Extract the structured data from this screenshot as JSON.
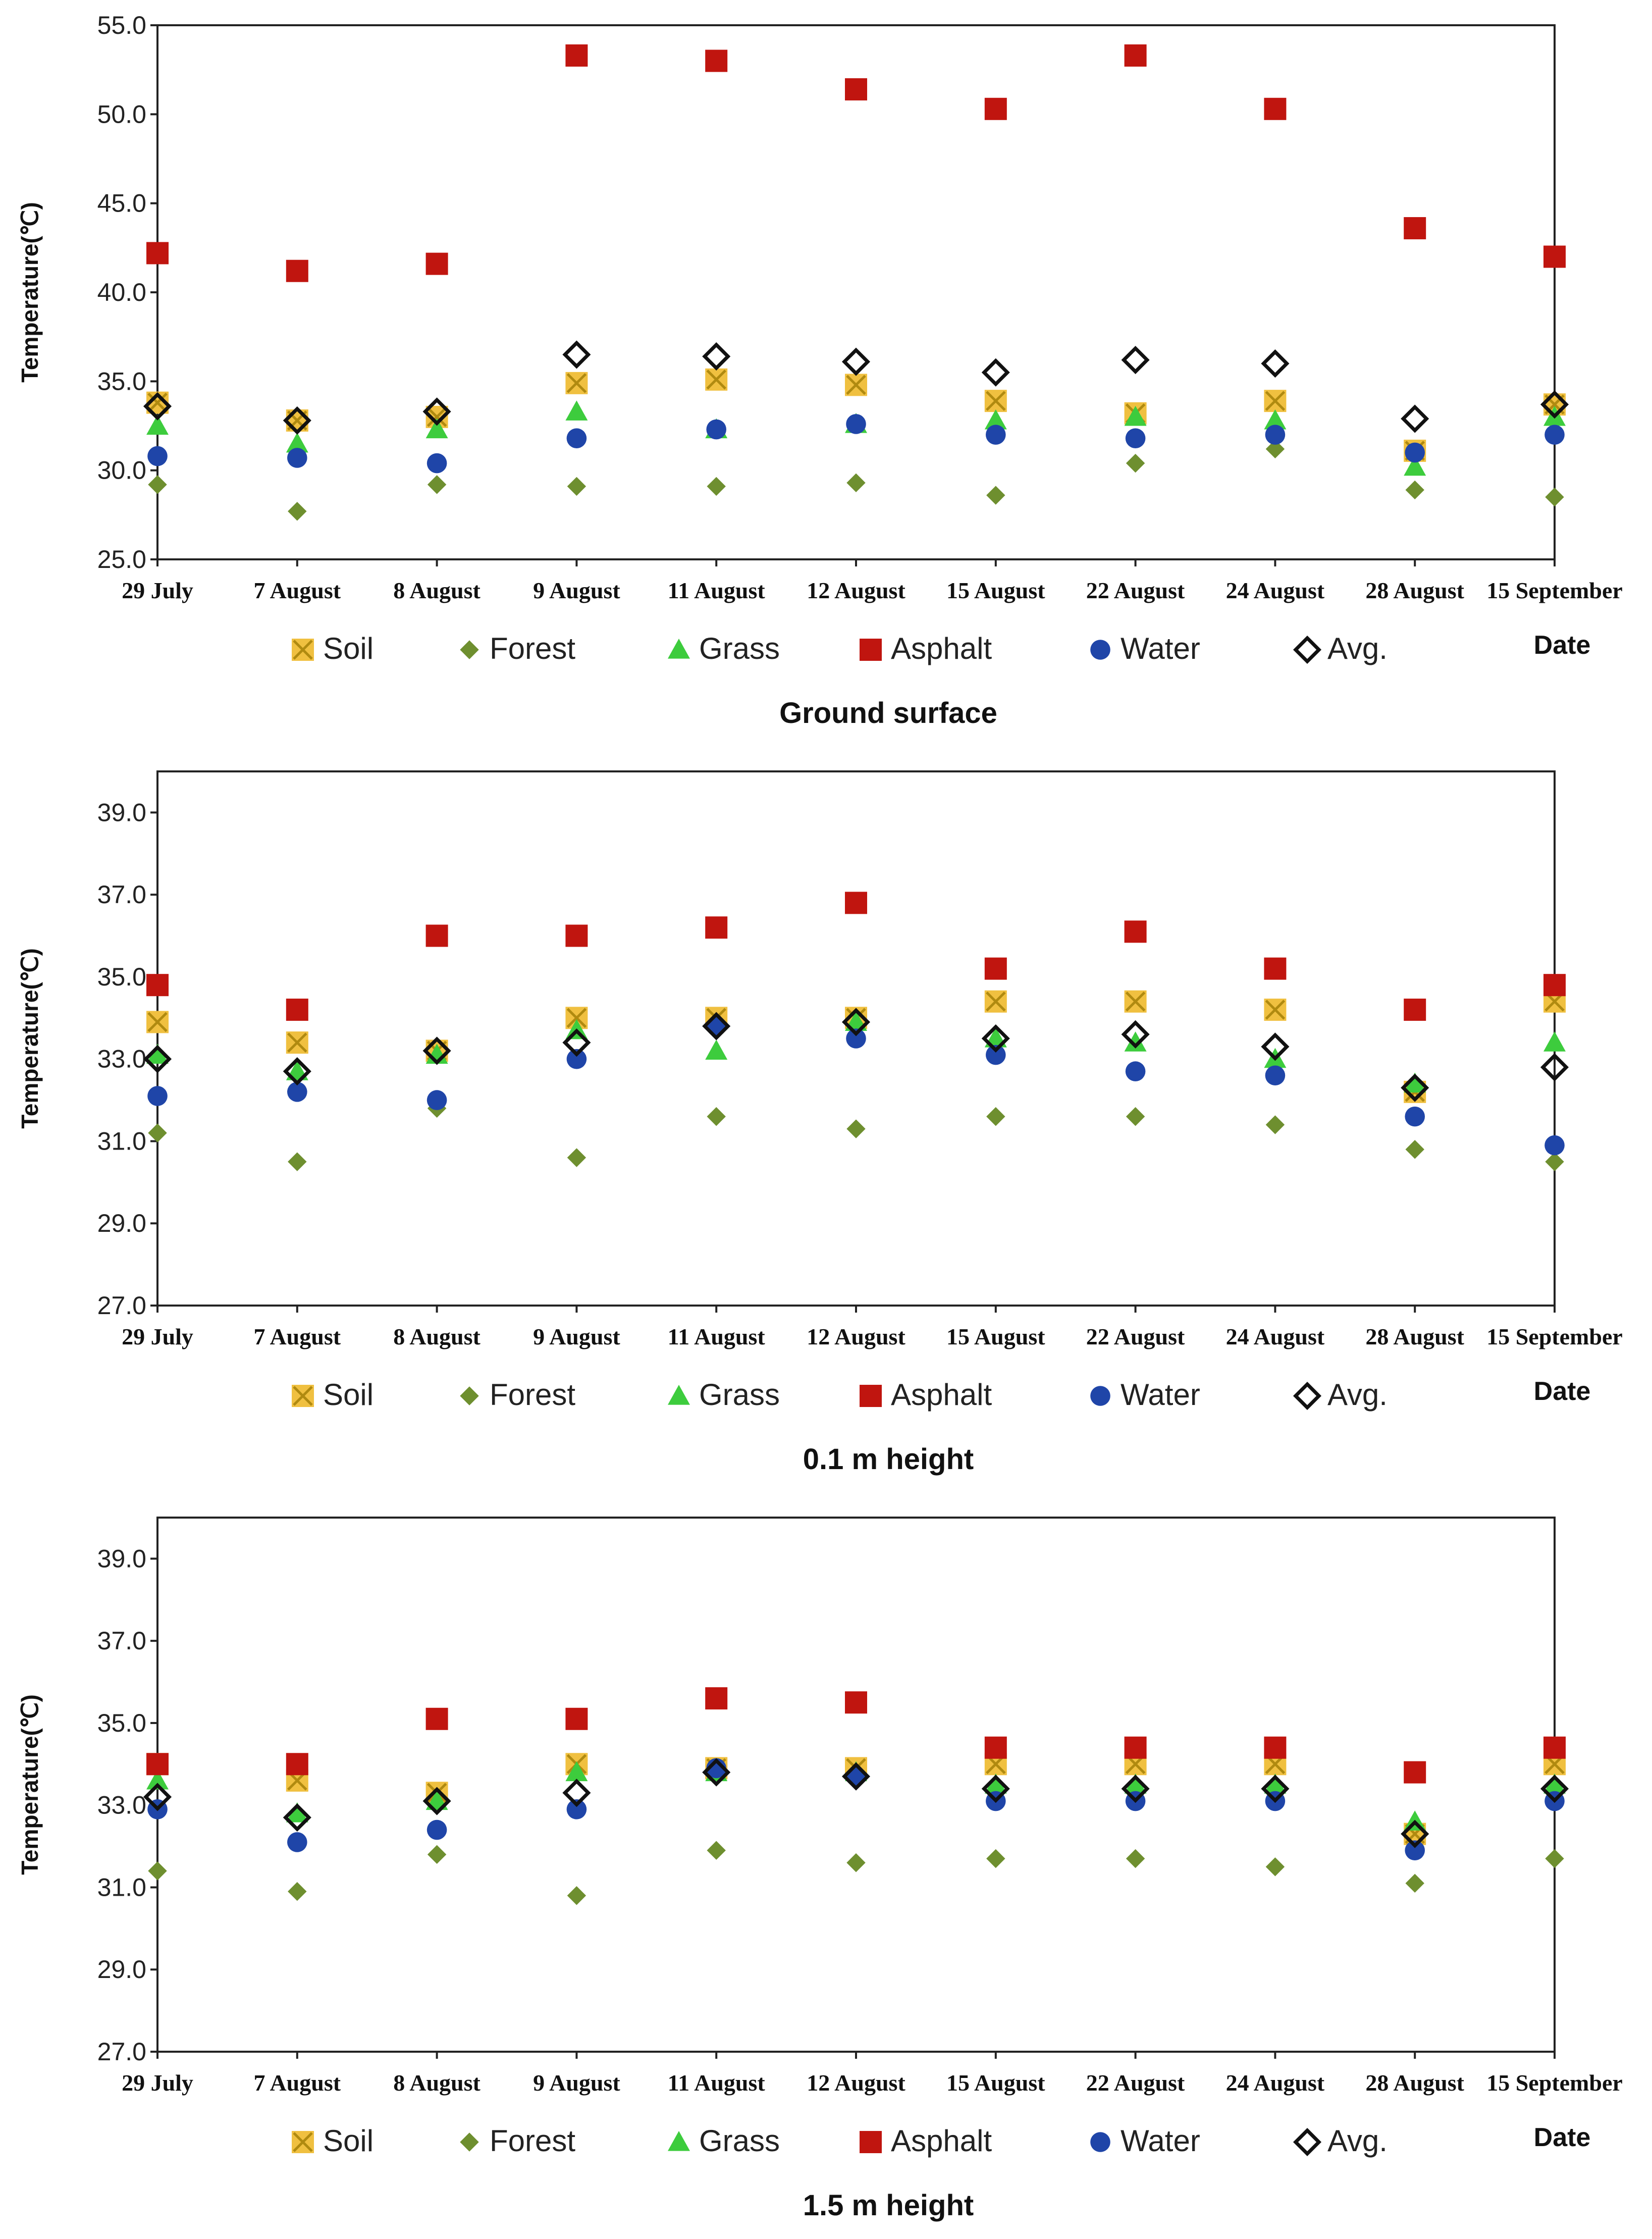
{
  "chart_data": [
    {
      "type": "scatter",
      "title": "Ground surface",
      "xlabel": "Date",
      "ylabel": "Temperature(℃)",
      "ylim": [
        25.0,
        55.0
      ],
      "yticks": [
        "25.0",
        "30.0",
        "35.0",
        "40.0",
        "45.0",
        "50.0",
        "55.0"
      ],
      "categories": [
        "29 July",
        "7 August",
        "8 August",
        "9 August",
        "11 August",
        "12 August",
        "15 August",
        "22 August",
        "24 August",
        "28 August",
        "15 September"
      ],
      "legend_position": "bottom",
      "series": [
        {
          "name": "Soil",
          "marker": "x-square",
          "color": "#f0c040",
          "values": [
            33.8,
            32.8,
            33.0,
            34.9,
            35.1,
            34.8,
            33.9,
            33.2,
            33.9,
            31.1,
            33.7
          ]
        },
        {
          "name": "Forest",
          "marker": "diamond",
          "color": "#6e8f2f",
          "values": [
            29.2,
            27.7,
            29.2,
            29.1,
            29.1,
            29.3,
            28.6,
            30.4,
            31.2,
            28.9,
            28.5
          ]
        },
        {
          "name": "Grass",
          "marker": "triangle",
          "color": "#3dcc3d",
          "values": [
            32.5,
            31.5,
            32.3,
            33.3,
            32.3,
            32.6,
            32.8,
            33.0,
            32.8,
            30.2,
            33.0
          ]
        },
        {
          "name": "Asphalt",
          "marker": "square",
          "color": "#c0150f",
          "values": [
            42.2,
            41.2,
            41.6,
            53.3,
            53.0,
            51.4,
            50.3,
            53.3,
            50.3,
            43.6,
            42.0
          ]
        },
        {
          "name": "Water",
          "marker": "circle",
          "color": "#1f45a8",
          "values": [
            30.8,
            30.7,
            30.4,
            31.8,
            32.3,
            32.6,
            32.0,
            31.8,
            32.0,
            31.0,
            32.0
          ]
        },
        {
          "name": "Avg.",
          "marker": "diamond-open",
          "color": "#111111",
          "values": [
            33.6,
            32.8,
            33.3,
            36.5,
            36.4,
            36.1,
            35.5,
            36.2,
            36.0,
            32.9,
            33.7
          ]
        }
      ]
    },
    {
      "type": "scatter",
      "title": "0.1 m height",
      "xlabel": "Date",
      "ylabel": "Temperature(℃)",
      "ylim": [
        27.0,
        40.0
      ],
      "yticks": [
        "27.0",
        "29.0",
        "31.0",
        "33.0",
        "35.0",
        "37.0",
        "39.0"
      ],
      "categories": [
        "29 July",
        "7 August",
        "8 August",
        "9 August",
        "11 August",
        "12 August",
        "15 August",
        "22 August",
        "24 August",
        "28 August",
        "15 September"
      ],
      "legend_position": "bottom",
      "series": [
        {
          "name": "Soil",
          "marker": "x-square",
          "color": "#f0c040",
          "values": [
            33.9,
            33.4,
            33.2,
            34.0,
            34.0,
            34.0,
            34.4,
            34.4,
            34.2,
            32.2,
            34.4
          ]
        },
        {
          "name": "Forest",
          "marker": "diamond",
          "color": "#6e8f2f",
          "values": [
            31.2,
            30.5,
            31.8,
            30.6,
            31.6,
            31.3,
            31.6,
            31.6,
            31.4,
            30.8,
            30.5
          ]
        },
        {
          "name": "Grass",
          "marker": "triangle",
          "color": "#3dcc3d",
          "values": [
            33.1,
            32.7,
            33.1,
            33.7,
            33.2,
            33.9,
            33.5,
            33.4,
            33.0,
            32.4,
            33.4
          ]
        },
        {
          "name": "Asphalt",
          "marker": "square",
          "color": "#c0150f",
          "values": [
            34.8,
            34.2,
            36.0,
            36.0,
            36.2,
            36.8,
            35.2,
            36.1,
            35.2,
            34.2,
            34.8
          ]
        },
        {
          "name": "Water",
          "marker": "circle",
          "color": "#1f45a8",
          "values": [
            32.1,
            32.2,
            32.0,
            33.0,
            33.8,
            33.5,
            33.1,
            32.7,
            32.6,
            31.6,
            30.9
          ]
        },
        {
          "name": "Avg.",
          "marker": "diamond-open",
          "color": "#111111",
          "values": [
            33.0,
            32.7,
            33.2,
            33.4,
            33.8,
            33.9,
            33.5,
            33.6,
            33.3,
            32.3,
            32.8
          ]
        }
      ]
    },
    {
      "type": "scatter",
      "title": "1.5 m height",
      "xlabel": "Date",
      "ylabel": "Temperature(℃)",
      "ylim": [
        27.0,
        40.0
      ],
      "yticks": [
        "27.0",
        "29.0",
        "31.0",
        "33.0",
        "35.0",
        "37.0",
        "39.0"
      ],
      "categories": [
        "29 July",
        "7 August",
        "8 August",
        "9 August",
        "11 August",
        "12 August",
        "15 August",
        "22 August",
        "24 August",
        "28 August",
        "15 September"
      ],
      "legend_position": "bottom",
      "series": [
        {
          "name": "Soil",
          "marker": "x-square",
          "color": "#f0c040",
          "values": [
            34.0,
            33.6,
            33.3,
            34.0,
            33.9,
            33.9,
            34.0,
            34.0,
            34.0,
            32.3,
            34.0
          ]
        },
        {
          "name": "Forest",
          "marker": "diamond",
          "color": "#6e8f2f",
          "values": [
            31.4,
            30.9,
            31.8,
            30.8,
            31.9,
            31.6,
            31.7,
            31.7,
            31.5,
            31.1,
            31.7
          ]
        },
        {
          "name": "Grass",
          "marker": "triangle",
          "color": "#3dcc3d",
          "values": [
            33.6,
            32.8,
            33.1,
            33.8,
            33.8,
            33.8,
            33.5,
            33.5,
            33.5,
            32.6,
            33.5
          ]
        },
        {
          "name": "Asphalt",
          "marker": "square",
          "color": "#c0150f",
          "values": [
            34.0,
            34.0,
            35.1,
            35.1,
            35.6,
            35.5,
            34.4,
            34.4,
            34.4,
            33.8,
            34.4
          ]
        },
        {
          "name": "Water",
          "marker": "circle",
          "color": "#1f45a8",
          "values": [
            32.9,
            32.1,
            32.4,
            32.9,
            33.9,
            33.7,
            33.1,
            33.1,
            33.1,
            31.9,
            33.1
          ]
        },
        {
          "name": "Avg.",
          "marker": "diamond-open",
          "color": "#111111",
          "values": [
            33.2,
            32.7,
            33.1,
            33.3,
            33.8,
            33.7,
            33.4,
            33.4,
            33.4,
            32.3,
            33.4
          ]
        }
      ]
    }
  ]
}
